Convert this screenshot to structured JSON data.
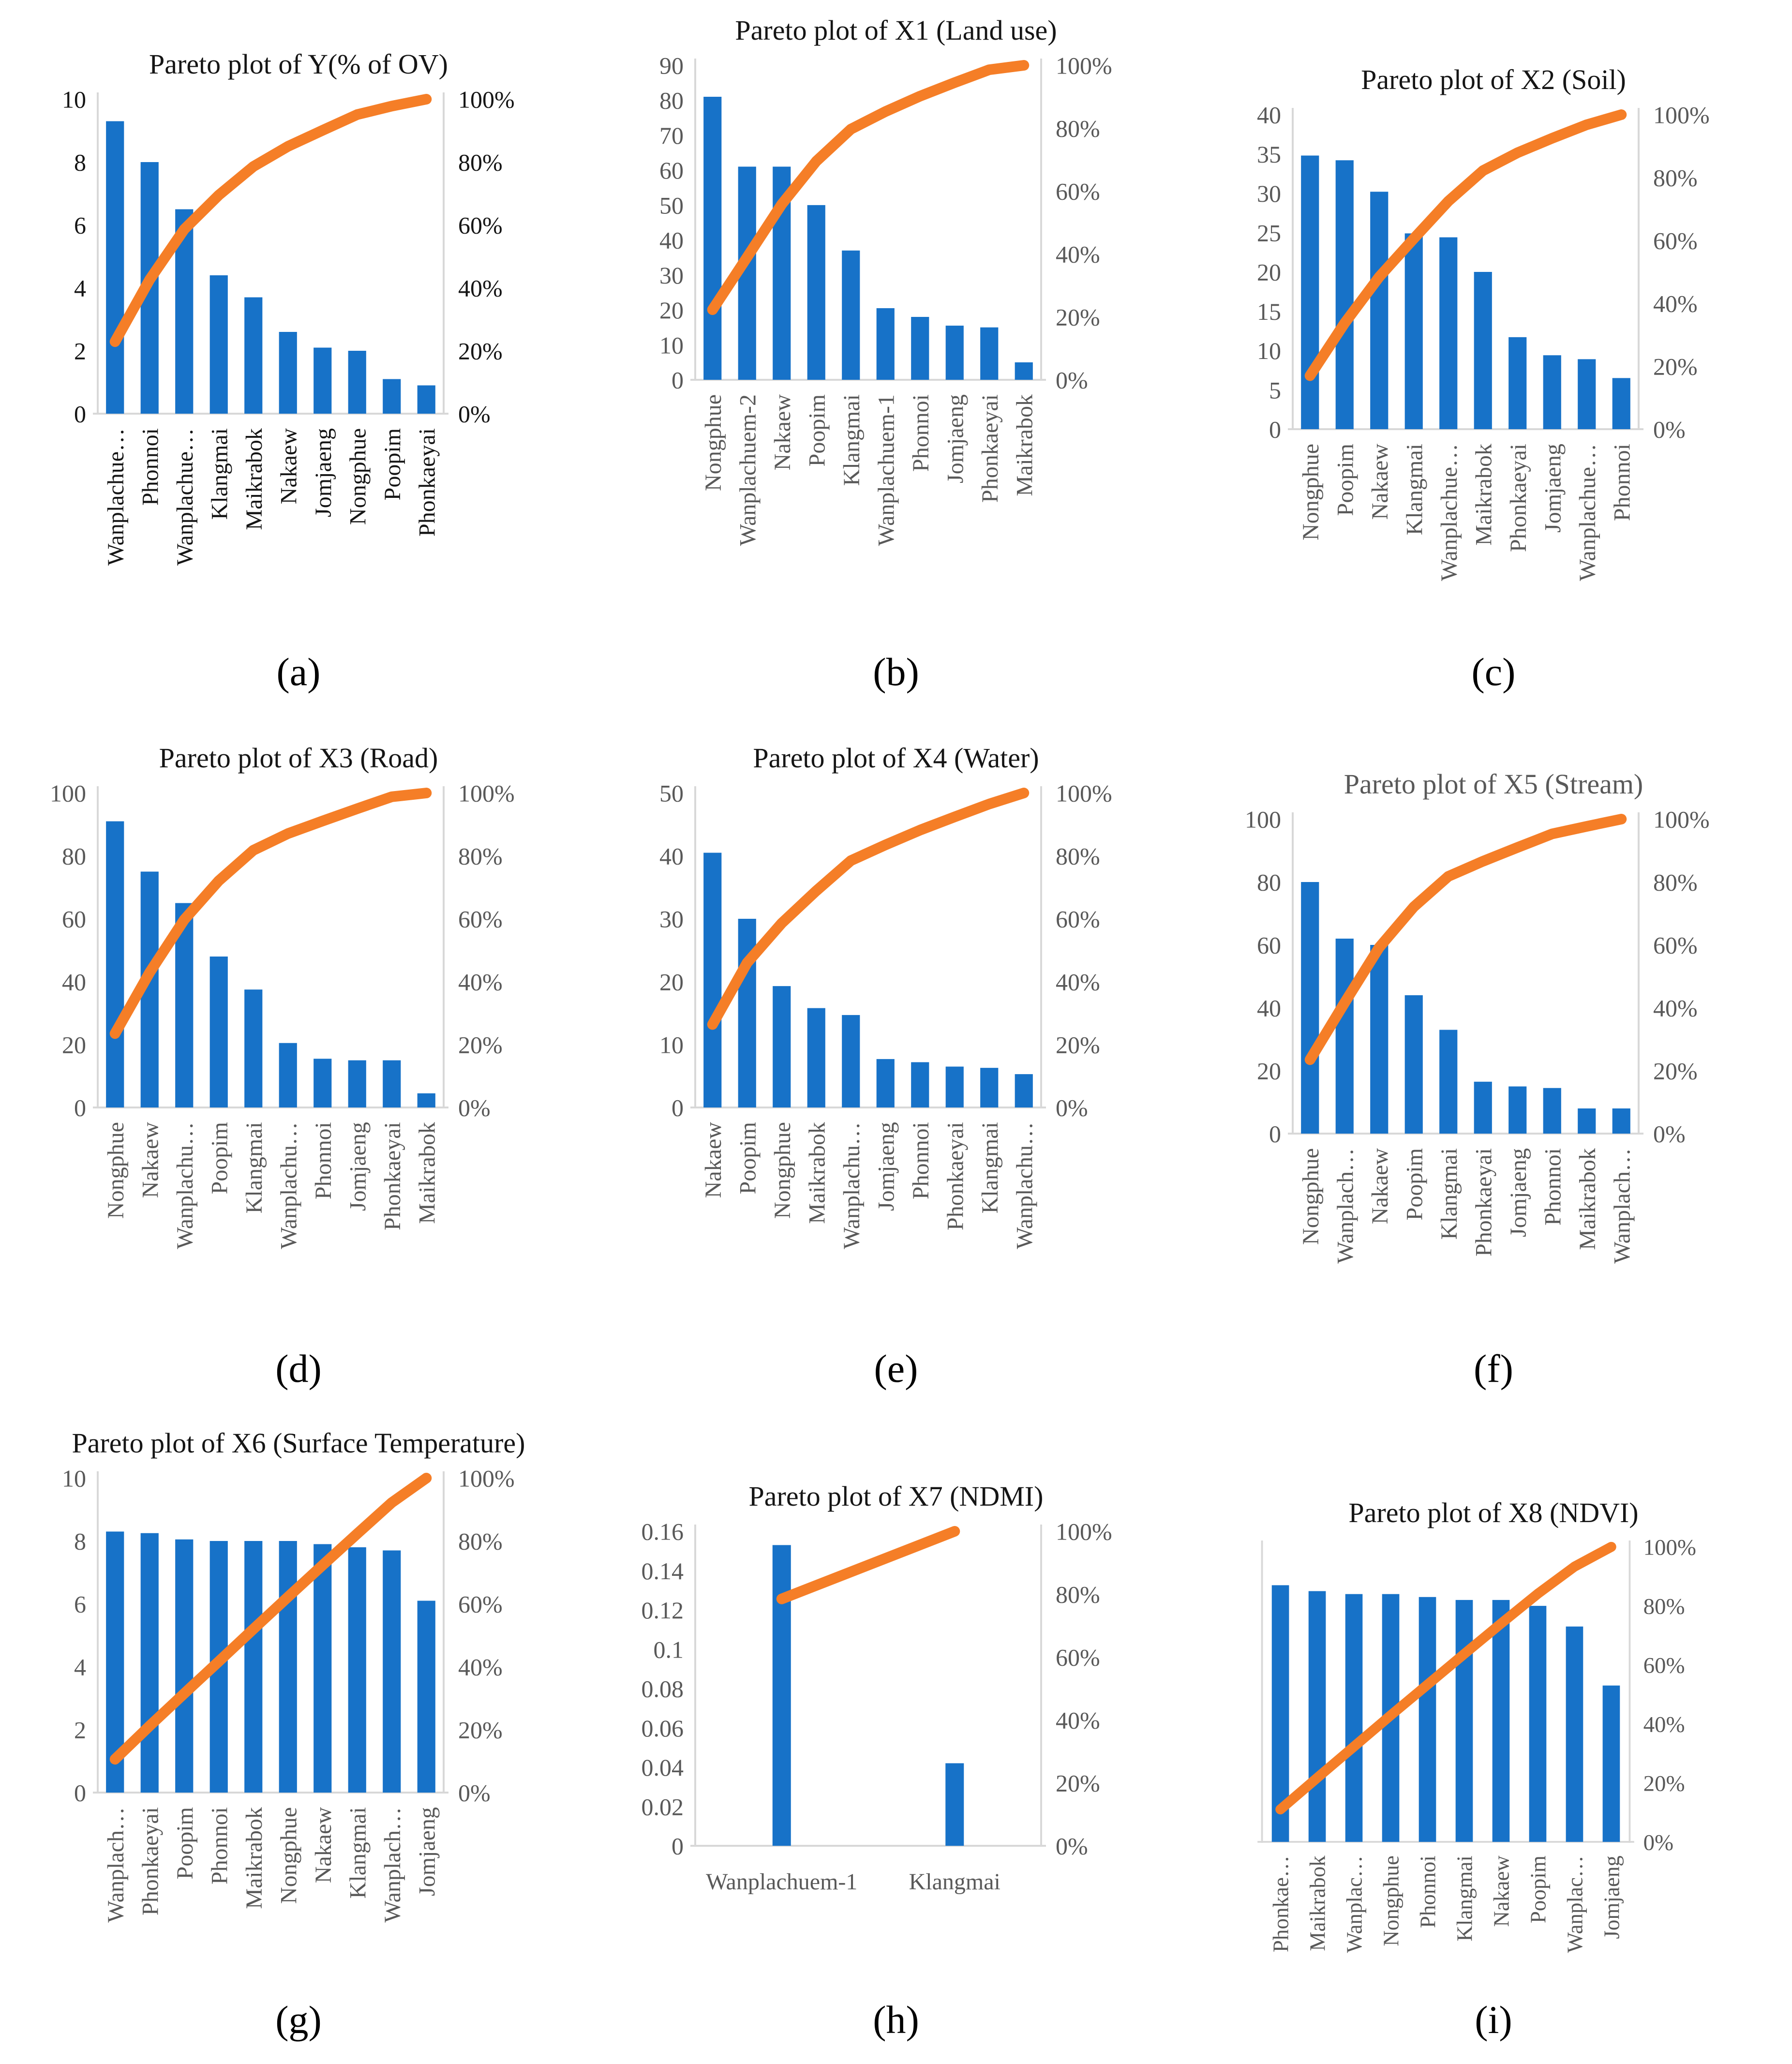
{
  "figure": {
    "bar_color": "#1772C8",
    "line_color": "#F57E27",
    "axis_color": "#D8D8D8",
    "gray_text_color": "#595959",
    "black_text_color": "#151515"
  },
  "chart_data": [
    {
      "type": "pareto",
      "letter": "(a)",
      "title": "Pareto plot of Y(% of OV)",
      "title_color": "#151515",
      "text_color": "#151515",
      "ylim": [
        0,
        10
      ],
      "left_ticks": [
        "10",
        "8",
        "6",
        "4",
        "2",
        "0"
      ],
      "right_ticks": [
        "100%",
        "80%",
        "60%",
        "40%",
        "20%",
        "0%"
      ],
      "categories": [
        "Wanplachue…",
        "Phonnoi",
        "Wanplachue…",
        "Klangmai",
        "Maikrabok",
        "Nakaew",
        "Jomjaeng",
        "Nongphue",
        "Poopim",
        "Phonkaeyai"
      ],
      "values": [
        9.3,
        8.0,
        6.5,
        4.4,
        3.7,
        2.6,
        2.1,
        2.0,
        1.1,
        0.9
      ],
      "cumulative_pct": [
        22.9,
        42.6,
        58.6,
        69.5,
        78.6,
        85.0,
        90.1,
        95.1,
        97.8,
        100
      ],
      "rotated_labels": true,
      "grid": false
    },
    {
      "type": "pareto",
      "letter": "(b)",
      "title": "Pareto plot of X1 (Land use)",
      "title_color": "#151515",
      "text_color": "#595959",
      "ylim": [
        0,
        90
      ],
      "left_ticks": [
        "90",
        "80",
        "70",
        "60",
        "50",
        "40",
        "30",
        "20",
        "10",
        "0"
      ],
      "right_ticks": [
        "100%",
        "80%",
        "60%",
        "40%",
        "20%",
        "0%"
      ],
      "categories": [
        "Nongphue",
        "Wanplachuem-2",
        "Nakaew",
        "Poopim",
        "Klangmai",
        "Wanplachuem-1",
        "Phonnoi",
        "Jomjaeng",
        "Phonkaeyai",
        "Maikrabok"
      ],
      "values": [
        81,
        61,
        61,
        50,
        37,
        20.5,
        18,
        15.5,
        15,
        5
      ],
      "cumulative_pct": [
        22.3,
        39.0,
        55.8,
        69.5,
        79.7,
        85.3,
        90.2,
        94.5,
        98.6,
        100
      ],
      "rotated_labels": true,
      "grid": false
    },
    {
      "type": "pareto",
      "letter": "(c)",
      "title": "Pareto plot of X2 (Soil)",
      "title_color": "#151515",
      "text_color": "#595959",
      "ylim": [
        0,
        40
      ],
      "left_ticks": [
        "40",
        "35",
        "30",
        "25",
        "20",
        "15",
        "10",
        "5",
        "0"
      ],
      "right_ticks": [
        "100%",
        "80%",
        "60%",
        "40%",
        "20%",
        "0%"
      ],
      "categories": [
        "Nongphue",
        "Poopim",
        "Nakaew",
        "Klangmai",
        "Wanplachue…",
        "Maikrabok",
        "Phonkaeyai",
        "Jomjaeng",
        "Wanplachue…",
        "Phonnoi"
      ],
      "values": [
        34.8,
        34.2,
        30.2,
        24.9,
        24.4,
        20.0,
        11.7,
        9.4,
        8.9,
        6.5
      ],
      "cumulative_pct": [
        17.0,
        33.7,
        48.4,
        60.6,
        72.5,
        82.2,
        87.9,
        92.5,
        96.8,
        100
      ],
      "rotated_labels": true,
      "grid": false
    },
    {
      "type": "pareto",
      "letter": "(d)",
      "title": "Pareto plot of X3 (Road)",
      "title_color": "#151515",
      "text_color": "#595959",
      "ylim": [
        0,
        100
      ],
      "left_ticks": [
        "100",
        "80",
        "60",
        "40",
        "20",
        "0"
      ],
      "right_ticks": [
        "100%",
        "80%",
        "60%",
        "40%",
        "20%",
        "0%"
      ],
      "categories": [
        "Nongphue",
        "Nakaew",
        "Wanplachu…",
        "Poopim",
        "Klangmai",
        "Wanplachu…",
        "Phonnoi",
        "Jomjaeng",
        "Phonkaeyai",
        "Maikrabok"
      ],
      "values": [
        91,
        75,
        65,
        48,
        37.5,
        20.5,
        15.5,
        15,
        15,
        4.5
      ],
      "cumulative_pct": [
        23.5,
        42.9,
        59.7,
        72.1,
        81.8,
        87.1,
        91.1,
        95.0,
        98.8,
        100
      ],
      "rotated_labels": true,
      "grid": false
    },
    {
      "type": "pareto",
      "letter": "(e)",
      "title": "Pareto plot of X4 (Water)",
      "title_color": "#151515",
      "text_color": "#595959",
      "ylim": [
        0,
        50
      ],
      "left_ticks": [
        "50",
        "40",
        "30",
        "20",
        "10",
        "0"
      ],
      "right_ticks": [
        "100%",
        "80%",
        "60%",
        "40%",
        "20%",
        "0%"
      ],
      "categories": [
        "Nakaew",
        "Poopim",
        "Nongphue",
        "Maikrabok",
        "Wanplachu…",
        "Jomjaeng",
        "Phonnoi",
        "Phonkaeyai",
        "Klangmai",
        "Wanplachu…"
      ],
      "values": [
        40.5,
        30,
        19.3,
        15.8,
        14.7,
        7.7,
        7.2,
        6.5,
        6.3,
        5.3
      ],
      "cumulative_pct": [
        26.4,
        46.0,
        58.6,
        68.9,
        78.5,
        83.5,
        88.2,
        92.4,
        96.5,
        100
      ],
      "rotated_labels": true,
      "grid": false
    },
    {
      "type": "pareto",
      "letter": "(f)",
      "title": "Pareto plot of X5 (Stream)",
      "title_color": "#595959",
      "text_color": "#595959",
      "ylim": [
        0,
        100
      ],
      "left_ticks": [
        "100",
        "80",
        "60",
        "40",
        "20",
        "0"
      ],
      "right_ticks": [
        "100%",
        "80%",
        "60%",
        "40%",
        "20%",
        "0%"
      ],
      "categories": [
        "Nongphue",
        "Wanplach…",
        "Nakaew",
        "Poopim",
        "Klangmai",
        "Phonkaeyai",
        "Jomjaeng",
        "Phonnoi",
        "Maikrabok",
        "Wanplach…"
      ],
      "values": [
        80,
        62,
        60,
        44,
        33,
        16.5,
        15,
        14.5,
        8,
        8
      ],
      "cumulative_pct": [
        23.5,
        41.6,
        59.2,
        72.1,
        81.8,
        86.6,
        91.0,
        95.3,
        97.7,
        100
      ],
      "rotated_labels": true,
      "grid": false
    },
    {
      "type": "pareto",
      "letter": "(g)",
      "title": "Pareto plot of X6 (Surface Temperature)",
      "title_color": "#151515",
      "text_color": "#595959",
      "ylim": [
        0,
        10
      ],
      "left_ticks": [
        "10",
        "8",
        "6",
        "4",
        "2",
        "0"
      ],
      "right_ticks": [
        "100%",
        "80%",
        "60%",
        "40%",
        "20%",
        "0%"
      ],
      "categories": [
        "Wanplach…",
        "Phonkaeyai",
        "Poopim",
        "Phonnoi",
        "Maikrabok",
        "Nongphue",
        "Nakaew",
        "Klangmai",
        "Wanplach…",
        "Jomjaeng"
      ],
      "values": [
        8.3,
        8.25,
        8.05,
        8.0,
        8.0,
        8.0,
        7.9,
        7.8,
        7.7,
        6.1
      ],
      "cumulative_pct": [
        10.6,
        21.2,
        31.5,
        41.7,
        52.0,
        62.2,
        72.3,
        82.3,
        92.2,
        100
      ],
      "rotated_labels": true,
      "grid": false
    },
    {
      "type": "pareto",
      "letter": "(h)",
      "title": "Pareto plot of X7 (NDMI)",
      "title_color": "#151515",
      "text_color": "#595959",
      "ylim": [
        0,
        0.16
      ],
      "left_ticks": [
        "0.16",
        "0.14",
        "0.12",
        "0.1",
        "0.08",
        "0.06",
        "0.04",
        "0.02",
        "0"
      ],
      "right_ticks": [
        "100%",
        "80%",
        "60%",
        "40%",
        "20%",
        "0%"
      ],
      "categories": [
        "Wanplachuem-1",
        "Klangmai"
      ],
      "values": [
        0.153,
        0.042
      ],
      "cumulative_pct": [
        78.5,
        100
      ],
      "rotated_labels": false,
      "grid": false
    },
    {
      "type": "pareto",
      "letter": "(i)",
      "title": "Pareto plot of X8 (NDVI)",
      "title_color": "#151515",
      "text_color": "#595959",
      "ylim": [
        0,
        1
      ],
      "left_ticks": [],
      "right_ticks": [
        "100%",
        "80%",
        "60%",
        "40%",
        "20%",
        "0%"
      ],
      "categories": [
        "Phonkae…",
        "Maikrabok",
        "Wanplac…",
        "Nongphue",
        "Phonnoi",
        "Klangmai",
        "Nakaew",
        "Poopim",
        "Wanplac…",
        "Jomjaeng"
      ],
      "values": [
        0.87,
        0.85,
        0.84,
        0.84,
        0.83,
        0.82,
        0.82,
        0.8,
        0.73,
        0.53
      ],
      "cumulative_pct": [
        11.0,
        21.7,
        32.3,
        42.9,
        53.3,
        63.7,
        74.0,
        84.1,
        93.3,
        100
      ],
      "rotated_labels": true,
      "grid": false
    }
  ]
}
